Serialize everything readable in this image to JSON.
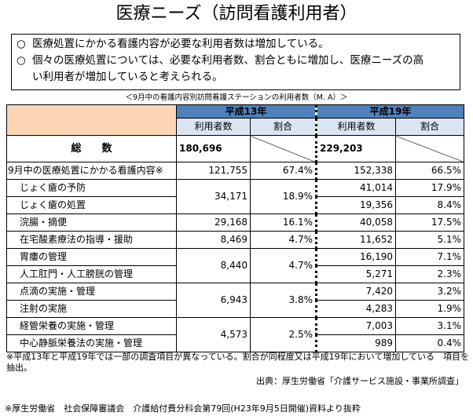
{
  "title": "医療ニーズ（訪問看護利用者）",
  "summary": {
    "bullet": "○",
    "points": [
      "医療処置にかかる看護内容が必要な利用者数は増加している。",
      "個々の医療処置については、必要な利用者数、割合ともに増加し、医療ニーズの高",
      "い利用者が増加していると考えられる。"
    ]
  },
  "table_caption": "＜9月中の看護内容別訪問看護ステーションの利用者数（M. A）＞",
  "table": {
    "years": [
      "平成13年",
      "平成19年"
    ],
    "subheaders": [
      "利用者数",
      "割合"
    ],
    "total": {
      "label": "総　　数",
      "h13": "180,696",
      "h19": "229,203"
    },
    "main": {
      "label": "9月中の医療処置にかかる看護内容※",
      "h13_n": "121,755",
      "h13_p": "67.4%",
      "h19_n": "152,338",
      "h19_p": "66.5%"
    },
    "groups": [
      {
        "h13_n": "34,171",
        "h13_p": "18.9%",
        "items": [
          {
            "label": "じょく瘡の予防",
            "h19_n": "41,014",
            "h19_p": "17.9%"
          },
          {
            "label": "じょく瘡の処置",
            "h19_n": "19,356",
            "h19_p": "8.4%"
          }
        ]
      },
      {
        "h13_n": "29,168",
        "h13_p": "16.1%",
        "items": [
          {
            "label": "浣腸・摘便",
            "h19_n": "40,058",
            "h19_p": "17.5%"
          }
        ]
      },
      {
        "h13_n": "8,469",
        "h13_p": "4.7%",
        "items": [
          {
            "label": "在宅酸素療法の指導・援助",
            "h19_n": "11,652",
            "h19_p": "5.1%"
          }
        ]
      },
      {
        "h13_n": "8,440",
        "h13_p": "4.7%",
        "items": [
          {
            "label": "胃瘻の管理",
            "h19_n": "16,190",
            "h19_p": "7.1%"
          },
          {
            "label": "人工肛門・人工膀胱の管理",
            "h19_n": "5,271",
            "h19_p": "2.3%"
          }
        ]
      },
      {
        "h13_n": "6,943",
        "h13_p": "3.8%",
        "items": [
          {
            "label": "点滴の実施・管理",
            "h19_n": "7,420",
            "h19_p": "3.2%"
          },
          {
            "label": "注射の実施",
            "h19_n": "4,283",
            "h19_p": "1.9%"
          }
        ]
      },
      {
        "h13_n": "4,573",
        "h13_p": "2.5%",
        "items": [
          {
            "label": "経管栄養の実施・管理",
            "h19_n": "7,003",
            "h19_p": "3.1%"
          },
          {
            "label": "中心静脈栄養法の実施・管理",
            "h19_n": "989",
            "h19_p": "0.4%"
          }
        ]
      }
    ]
  },
  "footnote": "※平成13年と平成19年では一部の調査項目が異なっている。割合が同程度又は平成19年において増加している　項目を抽出。",
  "source": "出典：厚生労働省「介護サービス施設・事業所調査」",
  "bottom_note": "※厚生労働省　社会保障審議会　介護給付費分科会第79回(H23年9月5日開催)資料より抜粋"
}
